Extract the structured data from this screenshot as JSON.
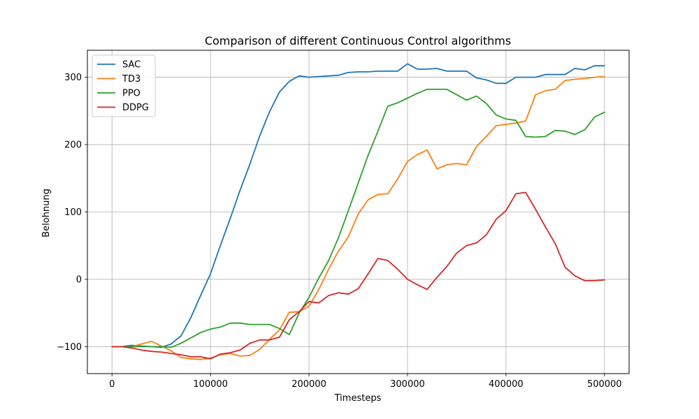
{
  "chart_data": {
    "type": "line",
    "title": "Comparison of different Continuous Control algorithms",
    "xlabel": "Timesteps",
    "ylabel": "Belohnung",
    "xlim": [
      -25000,
      525000
    ],
    "ylim": [
      -140,
      340
    ],
    "xticks": [
      0,
      100000,
      200000,
      300000,
      400000,
      500000
    ],
    "yticks": [
      -100,
      0,
      100,
      200,
      300
    ],
    "grid": true,
    "legend_position": "top-left",
    "x": [
      0,
      10000,
      20000,
      30000,
      40000,
      50000,
      60000,
      70000,
      80000,
      90000,
      100000,
      110000,
      120000,
      130000,
      140000,
      150000,
      160000,
      170000,
      180000,
      190000,
      200000,
      210000,
      220000,
      230000,
      240000,
      250000,
      260000,
      270000,
      280000,
      290000,
      300000,
      310000,
      320000,
      330000,
      340000,
      350000,
      360000,
      370000,
      380000,
      390000,
      400000,
      410000,
      420000,
      430000,
      440000,
      450000,
      460000,
      470000,
      480000,
      490000,
      500000
    ],
    "series": [
      {
        "name": "SAC",
        "color": "#1f77b4",
        "values": [
          -100,
          -100,
          -98,
          -99,
          -100,
          -101,
          -96,
          -84,
          -57,
          -24,
          8,
          50,
          90,
          132,
          171,
          213,
          249,
          278,
          294,
          302,
          300,
          301,
          302,
          303,
          307,
          308,
          308,
          309,
          309,
          309,
          320,
          312,
          312,
          313,
          309,
          309,
          309,
          299,
          296,
          291,
          291,
          300,
          300,
          300,
          304,
          304,
          304,
          313,
          311,
          317,
          317
        ]
      },
      {
        "name": "TD3",
        "color": "#ff7f0e",
        "values": [
          -100,
          -100,
          -100,
          -96,
          -92,
          -99,
          -106,
          -116,
          -118,
          -119,
          -117,
          -112,
          -110,
          -114,
          -113,
          -104,
          -89,
          -75,
          -49,
          -48,
          -40,
          -15,
          15,
          42,
          63,
          97,
          118,
          126,
          127,
          149,
          175,
          185,
          192,
          164,
          170,
          172,
          170,
          197,
          212,
          228,
          230,
          232,
          235,
          274,
          280,
          282,
          295,
          297,
          298,
          300,
          301
        ]
      },
      {
        "name": "PPO",
        "color": "#2ca02c",
        "values": [
          -100,
          -100,
          -100,
          -100,
          -100,
          -100,
          -101,
          -95,
          -87,
          -79,
          -74,
          -71,
          -65,
          -65,
          -67,
          -67,
          -67,
          -73,
          -82,
          -50,
          -27,
          2,
          28,
          62,
          102,
          143,
          184,
          220,
          257,
          262,
          269,
          276,
          282,
          282,
          282,
          274,
          266,
          272,
          261,
          244,
          238,
          236,
          212,
          211,
          212,
          221,
          220,
          215,
          222,
          241,
          248
        ]
      },
      {
        "name": "DDPG",
        "color": "#d62728",
        "values": [
          -100,
          -100,
          -102,
          -105,
          -107,
          -108,
          -110,
          -112,
          -115,
          -115,
          -118,
          -111,
          -109,
          -105,
          -95,
          -90,
          -90,
          -86,
          -60,
          -48,
          -33,
          -35,
          -24,
          -20,
          -22,
          -14,
          8,
          31,
          28,
          15,
          0,
          -8,
          -15,
          3,
          19,
          39,
          50,
          54,
          66,
          89,
          102,
          127,
          129,
          104,
          78,
          53,
          18,
          5,
          -2,
          -2,
          -1
        ]
      }
    ]
  }
}
